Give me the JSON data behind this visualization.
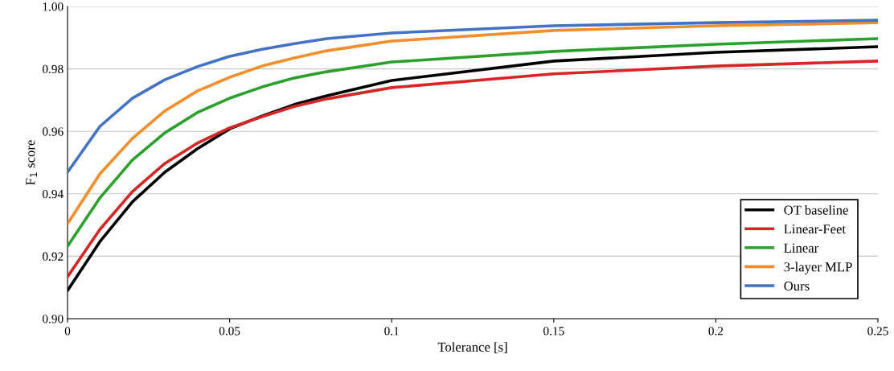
{
  "chart_data": {
    "type": "line",
    "xlabel": "Tolerance [s]",
    "ylabel": "F$_{1}$ score",
    "x": [
      0,
      0.01,
      0.02,
      0.03,
      0.04,
      0.05,
      0.06,
      0.07,
      0.08,
      0.1,
      0.15,
      0.2,
      0.25
    ],
    "series": [
      {
        "name": "OT baseline",
        "color": "#000000",
        "values": [
          0.909,
          0.9247,
          0.9374,
          0.9469,
          0.9544,
          0.9608,
          0.9649,
          0.9686,
          0.9714,
          0.9763,
          0.9825,
          0.9853,
          0.9871
        ]
      },
      {
        "name": "Linear-Feet",
        "color": "#d62728",
        "values": [
          0.9134,
          0.9286,
          0.9407,
          0.9497,
          0.9562,
          0.9611,
          0.9647,
          0.968,
          0.9704,
          0.974,
          0.9784,
          0.9809,
          0.9825
        ]
      },
      {
        "name": "Linear",
        "color": "#2ca02c",
        "values": [
          0.9232,
          0.9387,
          0.9508,
          0.9595,
          0.966,
          0.9706,
          0.9742,
          0.9771,
          0.9791,
          0.9822,
          0.9856,
          0.9879,
          0.9897
        ]
      },
      {
        "name": "3-layer MLP",
        "color": "#f28e2b",
        "values": [
          0.9304,
          0.9464,
          0.9577,
          0.9665,
          0.9729,
          0.9773,
          0.9809,
          0.9835,
          0.9858,
          0.9889,
          0.9923,
          0.9938,
          0.9948
        ]
      },
      {
        "name": "Ours",
        "color": "#4472c4",
        "values": [
          0.9469,
          0.9616,
          0.9706,
          0.9765,
          0.9807,
          0.984,
          0.9863,
          0.9881,
          0.9897,
          0.9915,
          0.9938,
          0.9948,
          0.9956
        ]
      }
    ],
    "xlim": [
      0,
      0.25
    ],
    "xticks": [
      0,
      0.05,
      0.1,
      0.15,
      0.2,
      0.25
    ],
    "ylim": [
      0.9,
      1.0
    ],
    "yticks": [
      {
        "value": 0.9,
        "label": "0.90"
      },
      {
        "value": 0.92,
        "label": "0.92"
      },
      {
        "value": 0.94,
        "label": "0.94"
      },
      {
        "value": 0.96,
        "label": "0.96"
      },
      {
        "value": 0.98,
        "label": "0.98"
      },
      {
        "value": 1.0,
        "label": "1.00"
      }
    ],
    "grid": "y",
    "legend": "bottom right",
    "marker": "none",
    "line_style": "solid"
  }
}
